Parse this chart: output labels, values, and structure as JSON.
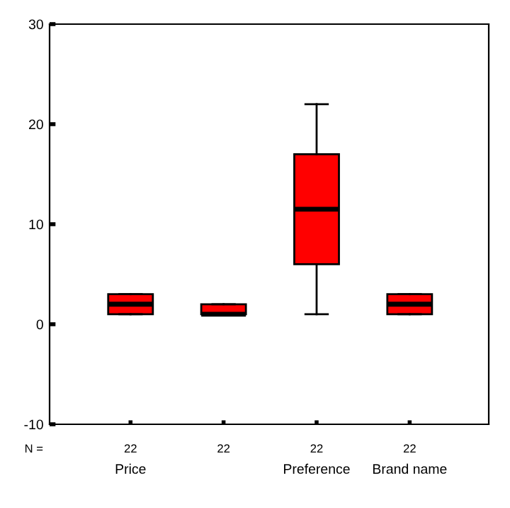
{
  "chart_data": {
    "type": "box",
    "categories": [
      "Price",
      null,
      "Preference",
      "Brand name"
    ],
    "boxes": [
      {
        "low": 1,
        "q1": 1,
        "median": 2,
        "q3": 3,
        "high": 3
      },
      {
        "low": 1,
        "q1": 1,
        "median": 1,
        "q3": 2,
        "high": 2
      },
      {
        "low": 1,
        "q1": 6,
        "median": 11.5,
        "q3": 17,
        "high": 22
      },
      {
        "low": 1,
        "q1": 1,
        "median": 2,
        "q3": 3,
        "high": 3
      }
    ],
    "color": "#ff0000",
    "ylim": [
      -10,
      30
    ],
    "yticks": [
      -10,
      0,
      10,
      20,
      30
    ],
    "grid": false,
    "legend": false,
    "annotations": [
      "N =",
      "22",
      "22",
      "22",
      "22"
    ]
  }
}
